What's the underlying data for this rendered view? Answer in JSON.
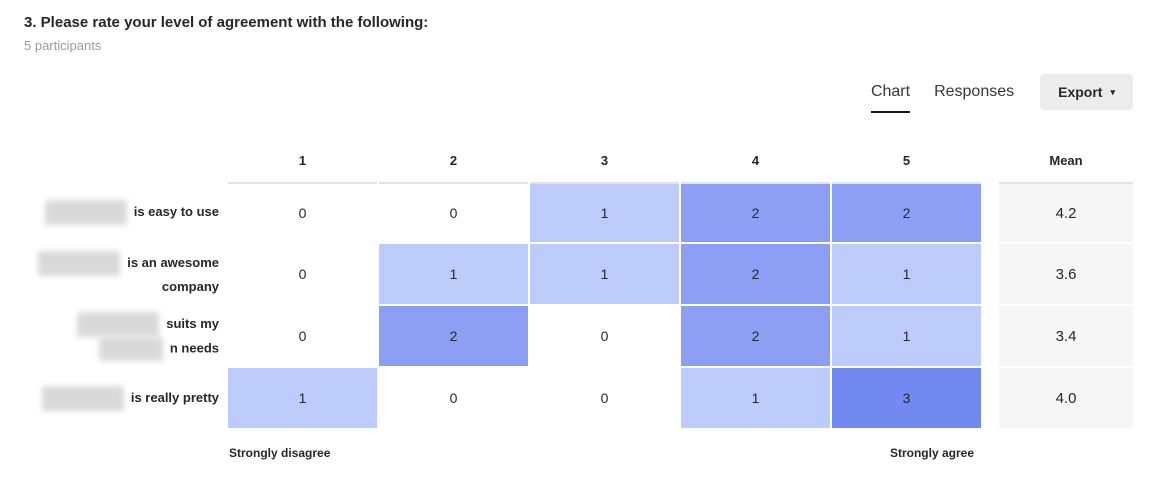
{
  "header": {
    "title": "3. Please rate your level of agreement with the following:",
    "participants": "5 participants"
  },
  "tabs": [
    {
      "label": "Chart",
      "active": true
    },
    {
      "label": "Responses",
      "active": false
    }
  ],
  "export": {
    "label": "Export",
    "caret_icon": "▾"
  },
  "chart_data": {
    "type": "heatmap",
    "title": "3. Please rate your level of agreement with the following:",
    "participants": 5,
    "columns": [
      "1",
      "2",
      "3",
      "4",
      "5"
    ],
    "mean_header": "Mean",
    "rows": [
      {
        "label_lines": [
          "is easy to use"
        ],
        "redacted_prefix": true,
        "values": [
          0,
          0,
          1,
          2,
          2
        ],
        "mean": "4.2"
      },
      {
        "label_lines": [
          "is an awesome",
          "company"
        ],
        "redacted_prefix": true,
        "values": [
          0,
          1,
          1,
          2,
          1
        ],
        "mean": "3.6"
      },
      {
        "label_lines": [
          "suits my",
          "n needs"
        ],
        "redacted_prefix": true,
        "values": [
          0,
          2,
          0,
          2,
          1
        ],
        "mean": "3.4"
      },
      {
        "label_lines": [
          "is really pretty"
        ],
        "redacted_prefix": true,
        "values": [
          1,
          0,
          0,
          1,
          3
        ],
        "mean": "4.0"
      }
    ],
    "scale_min_label": "Strongly disagree",
    "scale_max_label": "Strongly agree",
    "cell_colors": {
      "0": "#ffffff",
      "1": "#bccbfa",
      "2": "#8c9ff5",
      "3": "#7289f1"
    },
    "colors": {
      "grid_border": "#e3e3e3",
      "mean_bg": "#f6f6f6",
      "tab_underline": "#18181c",
      "export_bg": "#ececec"
    }
  }
}
